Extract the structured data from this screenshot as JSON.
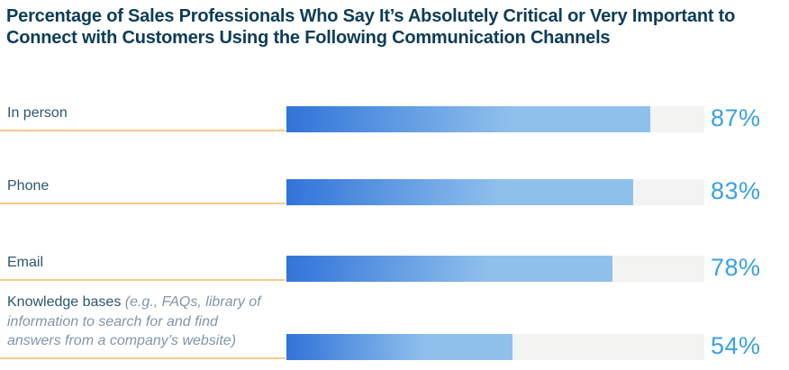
{
  "header": {
    "title_line1": "Percentage of Sales Professionals Who Say It’s Absolutely Critical or Very Important to",
    "title_line2": "Connect with Customers Using the Following Communication Channels"
  },
  "rows": [
    {
      "label": "In person",
      "note": "",
      "value": "87%",
      "pct": 87
    },
    {
      "label": "Phone",
      "note": "",
      "value": "83%",
      "pct": 83
    },
    {
      "label": "Email",
      "note": "",
      "value": "78%",
      "pct": 78
    },
    {
      "label": "Knowledge bases",
      "note": " (e.g., FAQs, library of information to search for and find answers from a company’s website)",
      "value": "54%",
      "pct": 54
    }
  ],
  "colors": {
    "title_text": "#0d3c58",
    "category_label": "#2d556e",
    "category_note": "#8196a9",
    "value_text": "#3aa2df",
    "bar_gradient_start": "#3174d9",
    "bar_gradient_end": "#8fc0ec",
    "bar_track": "#f3f3f2",
    "label_underline": "#f8c98c"
  },
  "chart_data": {
    "type": "bar",
    "orientation": "horizontal",
    "title": "Percentage of Sales Professionals Who Say It’s Absolutely Critical or Very Important to Connect with Customers Using the Following Communication Channels",
    "categories": [
      "In person",
      "Phone",
      "Email",
      "Knowledge bases (e.g., FAQs, library of information to search for and find answers from a company’s website)"
    ],
    "values": [
      87,
      83,
      78,
      54
    ],
    "value_labels": [
      "87%",
      "83%",
      "78%",
      "54%"
    ],
    "xlabel": "",
    "ylabel": "",
    "xlim": [
      0,
      100
    ],
    "grid": false,
    "legend": false,
    "bar_style": "gradient-blue on light-gray full-width track, value labels right of track"
  }
}
